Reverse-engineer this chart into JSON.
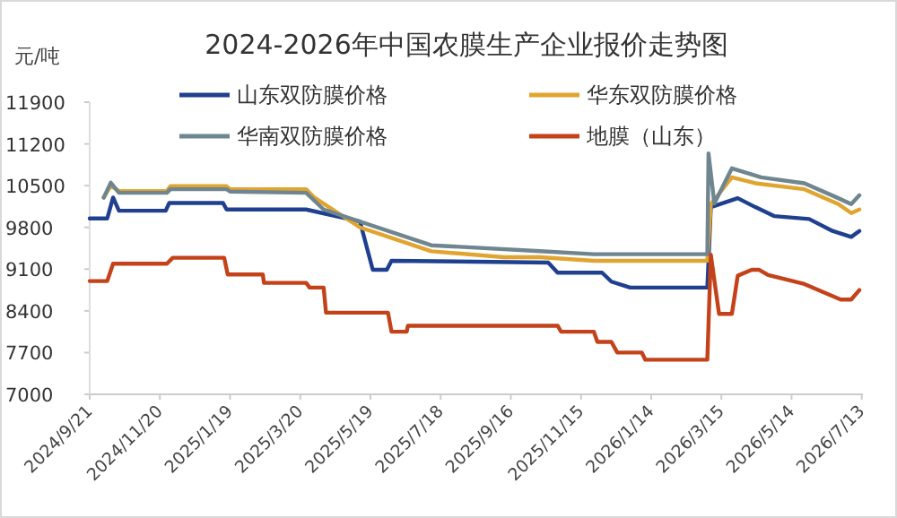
{
  "chart_data": {
    "type": "line",
    "title": "2024-2026年中国农膜生产企业报价走势图",
    "ylabel": "元/吨",
    "legend": "top",
    "line_style": "solid",
    "marker": "none",
    "xlim": [
      "2024-09-21",
      "2026-07-14"
    ],
    "ylim": [
      7000,
      11900
    ],
    "yticks": [
      7000,
      7700,
      8400,
      9100,
      9800,
      10500,
      11200,
      11900
    ],
    "xticks": [
      {
        "value": "2024-09-21",
        "label": "2024/9/21"
      },
      {
        "value": "2024-11-20",
        "label": "2024/11/20"
      },
      {
        "value": "2025-01-19",
        "label": "2025/1/19"
      },
      {
        "value": "2025-03-20",
        "label": "2025/3/20"
      },
      {
        "value": "2025-05-19",
        "label": "2025/5/19"
      },
      {
        "value": "2025-07-18",
        "label": "2025/7/18"
      },
      {
        "value": "2025-09-16",
        "label": "2025/9/16"
      },
      {
        "value": "2025-11-15",
        "label": "2025/11/15"
      },
      {
        "value": "2026-01-14",
        "label": "2026/1/14"
      },
      {
        "value": "2026-03-15",
        "label": "2026/3/15"
      },
      {
        "value": "2026-05-14",
        "label": "2026/5/14"
      },
      {
        "value": "2026-07-13",
        "label": "2026/7/13"
      }
    ],
    "series": [
      {
        "name": "山东双防膜价格",
        "color": "#1f3f8f",
        "x": [
          "2024-09-21",
          "2024-10-06",
          "2024-10-11",
          "2024-10-16",
          "2024-11-25",
          "2024-11-28",
          "2025-01-13",
          "2025-01-16",
          "2025-03-25",
          "2025-05-10",
          "2025-05-21",
          "2025-06-02",
          "2025-06-06",
          "2025-10-18",
          "2025-10-26",
          "2025-12-03",
          "2025-12-11",
          "2025-12-27",
          "2026-03-03",
          "2026-03-06",
          "2026-03-29",
          "2026-04-13",
          "2026-04-29",
          "2026-05-29",
          "2026-06-18",
          "2026-07-04",
          "2026-07-11"
        ],
        "values": [
          9950,
          9950,
          10300,
          10080,
          10080,
          10210,
          10210,
          10100,
          10100,
          9900,
          9090,
          9090,
          9240,
          9210,
          9040,
          9040,
          8890,
          8790,
          8790,
          10140,
          10290,
          10140,
          9990,
          9940,
          9740,
          9640,
          9740
        ]
      },
      {
        "name": "华东双防膜价格",
        "color": "#e0a530",
        "x": [
          "2024-10-03",
          "2024-10-09",
          "2024-10-16",
          "2024-11-26",
          "2024-11-29",
          "2025-01-16",
          "2025-01-19",
          "2025-03-25",
          "2025-04-01",
          "2025-05-10",
          "2025-07-10",
          "2025-09-10",
          "2025-10-11",
          "2025-11-26",
          "2026-03-03",
          "2026-03-06",
          "2026-03-24",
          "2026-04-13",
          "2026-05-25",
          "2026-06-23",
          "2026-07-04",
          "2026-07-11"
        ],
        "values": [
          10300,
          10500,
          10410,
          10410,
          10490,
          10490,
          10440,
          10440,
          10300,
          9800,
          9400,
          9300,
          9300,
          9240,
          9240,
          10190,
          10640,
          10540,
          10440,
          10190,
          10040,
          10100
        ]
      },
      {
        "name": "华南双防膜价格",
        "color": "#6f8590",
        "x": [
          "2024-10-03",
          "2024-10-09",
          "2024-10-16",
          "2024-11-26",
          "2024-11-29",
          "2025-01-16",
          "2025-01-19",
          "2025-03-25",
          "2025-04-09",
          "2025-07-10",
          "2025-10-11",
          "2025-11-26",
          "2026-03-03",
          "2026-03-04",
          "2026-03-09",
          "2026-03-24",
          "2026-04-18",
          "2026-05-25",
          "2026-06-23",
          "2026-07-04",
          "2026-07-11"
        ],
        "values": [
          10300,
          10550,
          10380,
          10380,
          10440,
          10440,
          10400,
          10380,
          10100,
          9500,
          9400,
          9350,
          9350,
          11040,
          10200,
          10790,
          10640,
          10540,
          10290,
          10190,
          10340
        ]
      },
      {
        "name": "地膜（山东）",
        "color": "#c4421a",
        "x": [
          "2024-09-21",
          "2024-10-06",
          "2024-10-11",
          "2024-11-26",
          "2024-12-01",
          "2025-01-14",
          "2025-01-17",
          "2025-02-16",
          "2025-02-17",
          "2025-03-25",
          "2025-03-28",
          "2025-04-09",
          "2025-04-11",
          "2025-06-03",
          "2025-06-06",
          "2025-06-19",
          "2025-06-20",
          "2025-10-26",
          "2025-10-29",
          "2025-11-26",
          "2025-11-29",
          "2025-12-11",
          "2025-12-16",
          "2026-01-06",
          "2026-01-09",
          "2026-03-03",
          "2026-03-06",
          "2026-03-13",
          "2026-03-24",
          "2026-03-29",
          "2026-04-10",
          "2026-04-16",
          "2026-04-24",
          "2026-05-25",
          "2026-06-25",
          "2026-07-04",
          "2026-07-11"
        ],
        "values": [
          8900,
          8900,
          9190,
          9190,
          9290,
          9290,
          9010,
          9010,
          8870,
          8870,
          8790,
          8790,
          8370,
          8370,
          8050,
          8050,
          8150,
          8150,
          8050,
          8050,
          7880,
          7880,
          7700,
          7700,
          7580,
          7580,
          9340,
          8350,
          8350,
          8990,
          9090,
          9090,
          9000,
          8850,
          8590,
          8590,
          8750
        ]
      }
    ]
  }
}
